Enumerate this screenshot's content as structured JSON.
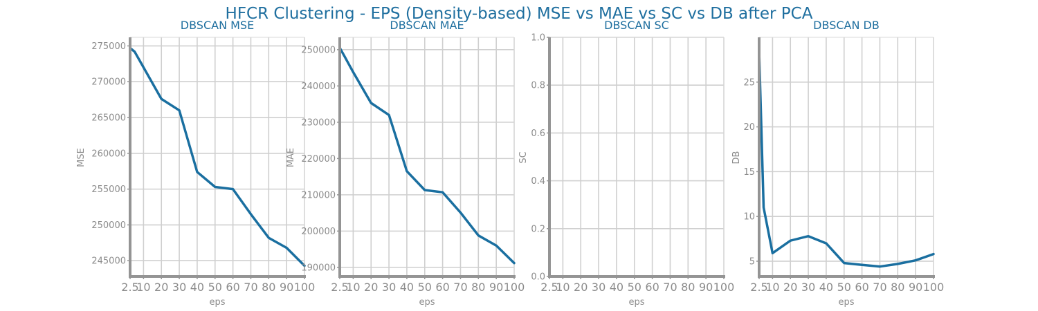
{
  "figure": {
    "title": "HFCR Clustering - EPS (Density-based) MSE vs MAE vs SC vs DB after PCA"
  },
  "colors": {
    "series": "#1a6fa0",
    "title": "#1f6f9f",
    "tick_text": "#8c8c8c"
  },
  "chart_data": [
    {
      "type": "line",
      "title": "DBSCAN MSE",
      "xlabel": "eps",
      "ylabel": "MSE",
      "xticks": [
        "2.5",
        "10",
        "20",
        "30",
        "40",
        "50",
        "60",
        "70",
        "80",
        "90",
        "100"
      ],
      "xtick_values": [
        2.5,
        10,
        20,
        30,
        40,
        50,
        60,
        70,
        80,
        90,
        100
      ],
      "yticks": [
        "245000",
        "250000",
        "255000",
        "260000",
        "265000",
        "270000",
        "275000"
      ],
      "ytick_values": [
        245000,
        250000,
        255000,
        260000,
        265000,
        270000,
        275000
      ],
      "xlim": [
        2.5,
        100
      ],
      "ylim": [
        242800,
        276200
      ],
      "grid": true,
      "x": [
        2.5,
        5,
        10,
        20,
        30,
        40,
        50,
        60,
        70,
        80,
        90,
        100
      ],
      "y": [
        274700,
        274200,
        272000,
        267600,
        266000,
        257400,
        255300,
        255000,
        251500,
        248200,
        246800,
        244300
      ]
    },
    {
      "type": "line",
      "title": "DBSCAN MAE",
      "xlabel": "eps",
      "ylabel": "MAE",
      "xticks": [
        "2.5",
        "10",
        "20",
        "30",
        "40",
        "50",
        "60",
        "70",
        "80",
        "90",
        "100"
      ],
      "xtick_values": [
        2.5,
        10,
        20,
        30,
        40,
        50,
        60,
        70,
        80,
        90,
        100
      ],
      "yticks": [
        "190000",
        "200000",
        "210000",
        "220000",
        "230000",
        "240000",
        "250000"
      ],
      "ytick_values": [
        190000,
        200000,
        210000,
        220000,
        230000,
        240000,
        250000
      ],
      "xlim": [
        2.5,
        100
      ],
      "ylim": [
        187500,
        253400
      ],
      "grid": true,
      "x": [
        2.5,
        5,
        10,
        20,
        30,
        40,
        50,
        60,
        70,
        80,
        90,
        100
      ],
      "y": [
        250500,
        248300,
        243800,
        235300,
        232000,
        216500,
        211300,
        210700,
        205100,
        198800,
        196000,
        191200
      ]
    },
    {
      "type": "line",
      "title": "DBSCAN SC",
      "xlabel": "eps",
      "ylabel": "SC",
      "xticks": [
        "2.5",
        "10",
        "20",
        "30",
        "40",
        "50",
        "60",
        "70",
        "80",
        "90",
        "100"
      ],
      "xtick_values": [
        2.5,
        10,
        20,
        30,
        40,
        50,
        60,
        70,
        80,
        90,
        100
      ],
      "yticks": [
        "0.0",
        "0.2",
        "0.4",
        "0.6",
        "0.8",
        "1.0"
      ],
      "ytick_values": [
        0,
        0.2,
        0.4,
        0.6,
        0.8,
        1.0
      ],
      "xlim": [
        2.5,
        100
      ],
      "ylim": [
        0,
        1.0
      ],
      "grid": true,
      "x": [],
      "y": []
    },
    {
      "type": "line",
      "title": "DBSCAN DB",
      "xlabel": "eps",
      "ylabel": "DB",
      "xticks": [
        "2.5",
        "10",
        "20",
        "30",
        "40",
        "50",
        "60",
        "70",
        "80",
        "90",
        "100"
      ],
      "xtick_values": [
        2.5,
        10,
        20,
        30,
        40,
        50,
        60,
        70,
        80,
        90,
        100
      ],
      "yticks": [
        "5",
        "10",
        "15",
        "20",
        "25"
      ],
      "ytick_values": [
        5,
        10,
        15,
        20,
        25
      ],
      "xlim": [
        2.5,
        100
      ],
      "ylim": [
        3.3,
        30
      ],
      "grid": true,
      "x": [
        2.5,
        5,
        10,
        20,
        30,
        40,
        50,
        60,
        70,
        80,
        90,
        100
      ],
      "y": [
        28.5,
        11.0,
        5.9,
        7.3,
        7.8,
        7.0,
        4.8,
        4.6,
        4.4,
        4.7,
        5.1,
        5.8
      ]
    }
  ]
}
